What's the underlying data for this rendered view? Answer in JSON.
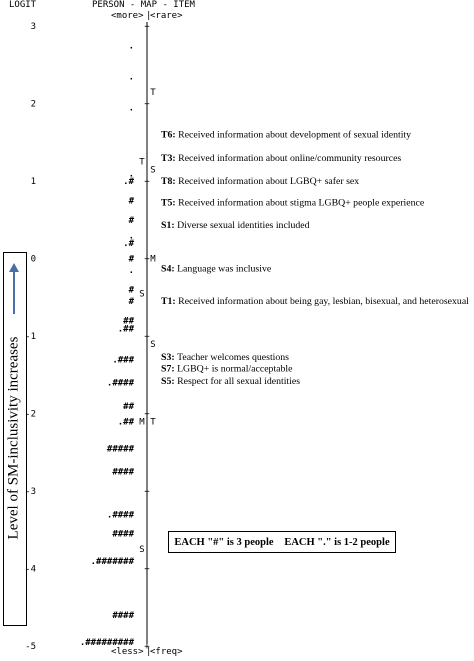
{
  "chart_data": {
    "type": "wright-map",
    "header": {
      "left": "LOGIT",
      "center": "PERSON - MAP - ITEM",
      "top_left": "<more>",
      "top_right": "<rare>",
      "bottom_left": "<less>",
      "bottom_right": "<freq>"
    },
    "y_axis": {
      "label": "Level of SM-inclusivity increases",
      "range": [
        -5,
        3.25
      ],
      "ticks": [
        3,
        2,
        1,
        0,
        -1,
        -2,
        -3,
        -4,
        -5
      ],
      "tick_labels": [
        "3",
        "2",
        "1",
        "0",
        "-1",
        "-2",
        "-3",
        "-4",
        "-5"
      ]
    },
    "persons": [
      {
        "logit": 2.75,
        "symbol": "."
      },
      {
        "logit": 2.35,
        "symbol": "."
      },
      {
        "logit": 1.95,
        "symbol": "."
      },
      {
        "logit": 1.1,
        "symbol": "."
      },
      {
        "logit": 1.0,
        "symbol": ".#"
      },
      {
        "logit": 0.75,
        "symbol": "#"
      },
      {
        "logit": 0.5,
        "symbol": "#"
      },
      {
        "logit": 0.3,
        "symbol": "."
      },
      {
        "logit": 0.2,
        "symbol": ".#"
      },
      {
        "logit": 0.0,
        "symbol": "#"
      },
      {
        "logit": -0.15,
        "symbol": "."
      },
      {
        "logit": -0.4,
        "symbol": "#"
      },
      {
        "logit": -0.55,
        "symbol": "#"
      },
      {
        "logit": -0.8,
        "symbol": "##"
      },
      {
        "logit": -0.9,
        "symbol": ".##"
      },
      {
        "logit": -1.3,
        "symbol": ".###"
      },
      {
        "logit": -1.6,
        "symbol": ".####"
      },
      {
        "logit": -1.9,
        "symbol": "##"
      },
      {
        "logit": -2.1,
        "symbol": ".##"
      },
      {
        "logit": -2.45,
        "symbol": "#####"
      },
      {
        "logit": -2.75,
        "symbol": "####"
      },
      {
        "logit": -3.3,
        "symbol": ".####"
      },
      {
        "logit": -3.55,
        "symbol": "####"
      },
      {
        "logit": -3.9,
        "symbol": ".#######"
      },
      {
        "logit": -4.6,
        "symbol": "####"
      },
      {
        "logit": -4.95,
        "symbol": ".#########"
      }
    ],
    "person_markers": [
      {
        "logit": 1.25,
        "symbol": "T"
      },
      {
        "logit": -0.45,
        "symbol": "S"
      },
      {
        "logit": -2.1,
        "symbol": "M"
      },
      {
        "logit": -3.75,
        "symbol": "S"
      }
    ],
    "item_markers": [
      {
        "logit": 2.15,
        "symbol": "T"
      },
      {
        "logit": 1.15,
        "symbol": "S"
      },
      {
        "logit": 0.0,
        "symbol": "M"
      },
      {
        "logit": -1.1,
        "symbol": "S"
      },
      {
        "logit": -2.1,
        "symbol": "T"
      }
    ],
    "items": [
      {
        "code": "T6:",
        "text": "Received information about development of sexual identity",
        "logit": 1.6
      },
      {
        "code": "T3:",
        "text": "Received information about online/community resources",
        "logit": 1.3
      },
      {
        "code": "T8:",
        "text": "Received information about LGBQ+ safer sex",
        "logit": 1.0
      },
      {
        "code": "T5:",
        "text": "Received information about stigma LGBQ+ people experience",
        "logit": 0.72
      },
      {
        "code": "S1:",
        "text": "Diverse sexual identities included",
        "logit": 0.43
      },
      {
        "code": "S4:",
        "text": "Language was inclusive",
        "logit": -0.13
      },
      {
        "code": "T1:",
        "text": "Received information about being gay, lesbian, bisexual, and heterosexual",
        "logit": -0.55
      },
      {
        "code": "S3:",
        "text": "Teacher welcomes questions",
        "logit": -1.27
      },
      {
        "code": "S7:",
        "text": "LGBQ+ is normal/acceptable",
        "logit": -1.42
      },
      {
        "code": "S5:",
        "text": "Respect for all sexual identities",
        "logit": -1.58
      }
    ],
    "legend": {
      "hash": "EACH \"#\" is 3 people",
      "dot": "EACH \".\" is 1-2 people"
    }
  }
}
